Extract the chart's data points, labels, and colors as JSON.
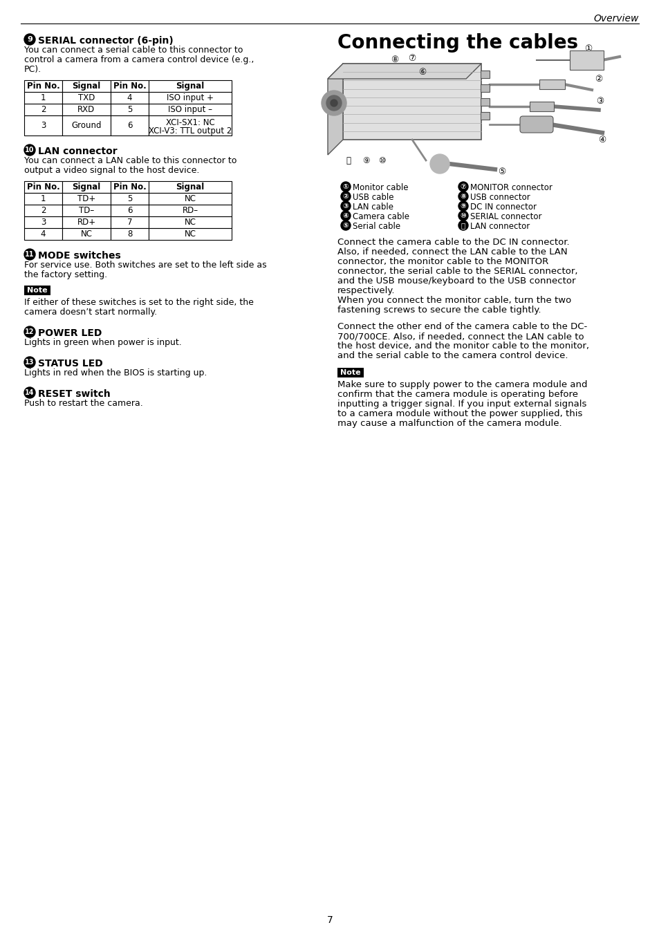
{
  "page_header": "Overview",
  "page_number": "7",
  "bg_color": "#ffffff",
  "section9_num": "9",
  "section9_title": "SERIAL connector (6-pin)",
  "section9_body": [
    "You can connect a serial cable to this connector to",
    "control a camera from a camera control device (e.g.,",
    "PC)."
  ],
  "table1_headers": [
    "Pin No.",
    "Signal",
    "Pin No.",
    "Signal"
  ],
  "table1_rows": [
    [
      "1",
      "TXD",
      "4",
      "ISO input +"
    ],
    [
      "2",
      "RXD",
      "5",
      "ISO input –"
    ],
    [
      "3",
      "Ground",
      "6",
      "XCI-SX1: NC\nXCI-V3: TTL output 2"
    ]
  ],
  "section10_num": "10",
  "section10_title": "LAN connector",
  "section10_body": [
    "You can connect a LAN cable to this connector to",
    "output a video signal to the host device."
  ],
  "table2_headers": [
    "Pin No.",
    "Signal",
    "Pin No.",
    "Signal"
  ],
  "table2_rows": [
    [
      "1",
      "TD+",
      "5",
      "NC"
    ],
    [
      "2",
      "TD–",
      "6",
      "RD–"
    ],
    [
      "3",
      "RD+",
      "7",
      "NC"
    ],
    [
      "4",
      "NC",
      "8",
      "NC"
    ]
  ],
  "section11_num": "11",
  "section11_title": "MODE switches",
  "section11_body": [
    "For service use. Both switches are set to the left side as",
    "the factory setting."
  ],
  "note1_body": [
    "If either of these switches is set to the right side, the",
    "camera doesn’t start normally."
  ],
  "section12_num": "12",
  "section12_title": "POWER LED",
  "section12_body": "Lights in green when power is input.",
  "section13_num": "13",
  "section13_title": "STATUS LED",
  "section13_body": "Lights in red when the BIOS is starting up.",
  "section14_num": "14",
  "section14_title": "RESET switch",
  "section14_body": "Push to restart the camera.",
  "right_title": "Connecting the cables",
  "legend_left": [
    [
      "①",
      "Monitor cable"
    ],
    [
      "②",
      "USB cable"
    ],
    [
      "③",
      "LAN cable"
    ],
    [
      "④",
      "Camera cable"
    ],
    [
      "⑤",
      "Serial cable"
    ]
  ],
  "legend_right": [
    [
      "⑦",
      "MONITOR connector"
    ],
    [
      "⑧",
      "USB connector"
    ],
    [
      "⑨",
      "DC IN connector"
    ],
    [
      "⑩",
      "SERIAL connector"
    ],
    [
      "ⓙ",
      "LAN connector"
    ]
  ],
  "right_para1": [
    "Connect the camera cable to the DC IN connector.",
    "Also, if needed, connect the LAN cable to the LAN",
    "connector, the monitor cable to the MONITOR",
    "connector, the serial cable to the SERIAL connector,",
    "and the USB mouse/keyboard to the USB connector",
    "respectively.",
    "When you connect the monitor cable, turn the two",
    "fastening screws to secure the cable tightly."
  ],
  "right_para2": [
    "Connect the other end of the camera cable to the DC-",
    "700/700CE. Also, if needed, connect the LAN cable to",
    "the host device, and the monitor cable to the monitor,",
    "and the serial cable to the camera control device."
  ],
  "note2_body": [
    "Make sure to supply power to the camera module and",
    "confirm that the camera module is operating before",
    "inputting a trigger signal. If you input external signals",
    "to a camera module without the power supplied, this",
    "may cause a malfunction of the camera module."
  ]
}
